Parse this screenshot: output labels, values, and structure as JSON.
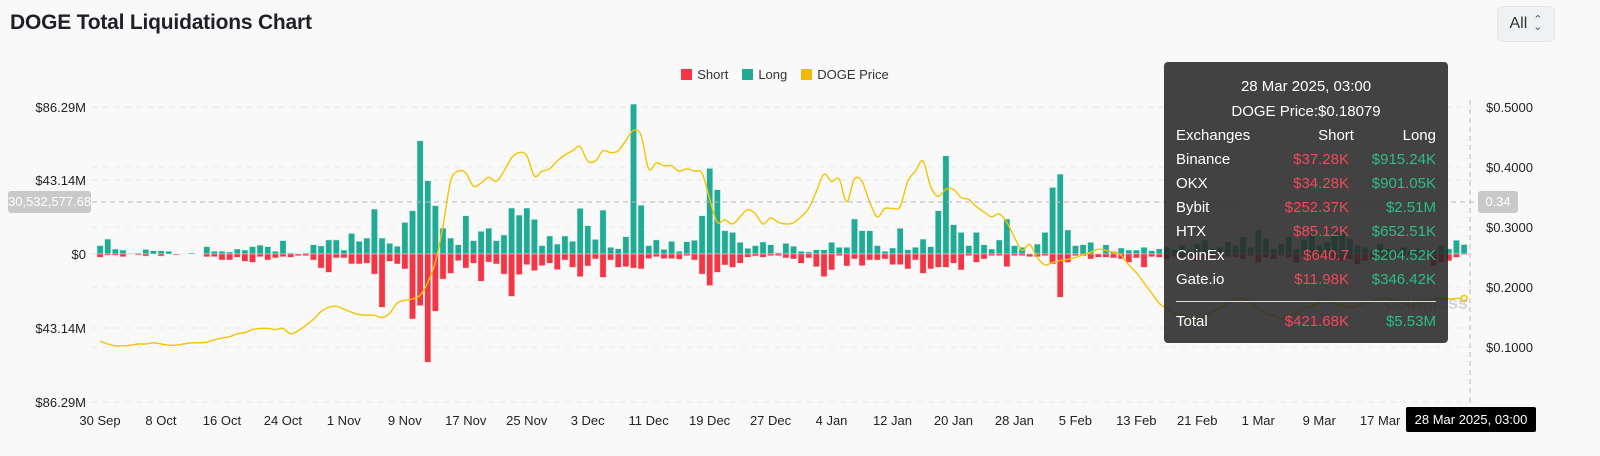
{
  "header": {
    "title": "DOGE Total Liquidations Chart",
    "range_value": "All"
  },
  "colors": {
    "short": "#f23645",
    "long": "#22ab94",
    "price": "#f5c400"
  },
  "crosshair": {
    "left_value": "30,532,577.68",
    "right_value": "0.34",
    "date": "28 Mar 2025, 03:00"
  },
  "watermark": "coinglass",
  "tooltip": {
    "date": "28 Mar 2025, 03:00",
    "price": "DOGE Price:$0.18079",
    "headers": [
      "Exchanges",
      "Short",
      "Long"
    ],
    "rows": [
      {
        "exchange": "Binance",
        "short": "$37.28K",
        "long": "$915.24K"
      },
      {
        "exchange": "OKX",
        "short": "$34.28K",
        "long": "$901.05K"
      },
      {
        "exchange": "Bybit",
        "short": "$252.37K",
        "long": "$2.51M"
      },
      {
        "exchange": "HTX",
        "short": "$85.12K",
        "long": "$652.51K"
      },
      {
        "exchange": "CoinEx",
        "short": "$640.7",
        "long": "$204.52K"
      },
      {
        "exchange": "Gate.io",
        "short": "$11.98K",
        "long": "$346.42K"
      }
    ],
    "total": {
      "label": "Total",
      "short": "$421.68K",
      "long": "$5.53M"
    }
  },
  "chart_data": {
    "type": "bar",
    "title": "DOGE Total Liquidations Chart",
    "legend": [
      "Short",
      "Long",
      "DOGE Price"
    ],
    "legend_position": "top-center",
    "x_unit": "day index from 30 Sep 2024 (daily bars)",
    "x_tick_labels": [
      "30 Sep",
      "8 Oct",
      "16 Oct",
      "24 Oct",
      "1 Nov",
      "9 Nov",
      "17 Nov",
      "25 Nov",
      "3 Dec",
      "11 Dec",
      "19 Dec",
      "27 Dec",
      "4 Jan",
      "12 Jan",
      "20 Jan",
      "28 Jan",
      "5 Feb",
      "13 Feb",
      "21 Feb",
      "1 Mar",
      "9 Mar",
      "17 Mar"
    ],
    "x_tick_step_days": 8,
    "y_left_labels": [
      "$86.29M",
      "$43.14M",
      "$0",
      "$43.14M",
      "$86.29M"
    ],
    "y_left_range_musd": [
      -86.29,
      86.29
    ],
    "y_right_labels": [
      "$0.5000",
      "$0.4000",
      "$0.3000",
      "$0.2000",
      "$0.1000"
    ],
    "y_right_range": [
      0.0,
      0.5
    ],
    "grid": true,
    "series": [
      {
        "name": "Long",
        "unit": "M USD",
        "values": [
          4.9,
          8.7,
          2.9,
          2.3,
          0.4,
          0.6,
          2.7,
          1.9,
          1.9,
          1.6,
          0,
          0,
          0.6,
          0,
          4.3,
          1.6,
          1.6,
          1.2,
          2.9,
          2.3,
          4.3,
          5.2,
          4.3,
          1.6,
          7.8,
          0.6,
          0,
          0.6,
          5.4,
          4.7,
          8.2,
          8.2,
          2.3,
          12,
          7.4,
          9.3,
          26.2,
          9.3,
          6.2,
          4.5,
          18.4,
          25.2,
          66,
          42.7,
          28.2,
          15.1,
          9.3,
          5.4,
          22.3,
          7.8,
          13.2,
          15,
          7.8,
          11.1,
          26.8,
          22.7,
          26.8,
          20.2,
          4.9,
          10.5,
          5.8,
          10.5,
          7.4,
          26.6,
          16.5,
          8.5,
          25.6,
          3.9,
          3.1,
          10.1,
          87.4,
          28.5,
          4.9,
          8.2,
          2.7,
          7.4,
          1.6,
          7.2,
          8,
          22.3,
          49.9,
          37.5,
          13.6,
          12.6,
          6.8,
          3.3,
          4.9,
          7,
          5.4,
          0.8,
          6.2,
          4.5,
          1.6,
          1.2,
          2.5,
          2.5,
          6.8,
          3.9,
          3.9,
          20.4,
          13.6,
          13.6,
          4.9,
          1.6,
          3.5,
          15,
          2.5,
          3.9,
          8.7,
          4.3,
          25.2,
          57.3,
          17.1,
          12.6,
          4.9,
          12.6,
          5.4,
          2.9,
          8.2,
          20.4,
          4.9,
          3.9,
          0,
          5.8,
          12.6,
          38.8,
          46.6,
          14,
          4.9,
          5.4,
          6.8,
          0,
          5.4,
          1.6,
          3.5,
          2.3,
          2.3,
          3.9,
          1.9,
          3,
          4,
          2.5,
          5,
          2,
          6,
          8,
          3,
          4,
          7,
          5,
          10,
          4,
          14,
          9,
          3,
          6,
          10,
          3,
          8,
          12,
          5,
          7,
          13,
          13,
          9,
          5,
          4,
          2,
          6,
          3,
          2,
          4,
          2,
          3,
          1.5,
          2,
          5,
          3,
          8,
          5.53
        ]
      },
      {
        "name": "Short",
        "unit": "M USD",
        "values": [
          1.9,
          0.8,
          0.8,
          1.6,
          0,
          0.6,
          1.2,
          0,
          1.2,
          0,
          0.6,
          0,
          0,
          0,
          1.6,
          1.6,
          3.5,
          3.5,
          1.9,
          4.3,
          4.9,
          1.6,
          3.5,
          2.3,
          1.6,
          1.9,
          1,
          1,
          3.5,
          8.2,
          10.7,
          2.3,
          2.3,
          5.8,
          5.8,
          5.4,
          11.7,
          31.1,
          4.3,
          5.8,
          8.7,
          37.9,
          30.1,
          63.1,
          33.4,
          14.6,
          11.3,
          3.9,
          8.2,
          5.4,
          15.9,
          4.7,
          5.8,
          11.7,
          24.7,
          12,
          6.2,
          9.7,
          6.8,
          5.4,
          9.1,
          3.5,
          7.8,
          13.2,
          7,
          2.9,
          13.6,
          3.5,
          7.8,
          7.4,
          8.2,
          8.7,
          2.7,
          1.6,
          2.7,
          2.7,
          3.1,
          1,
          3.5,
          11.7,
          18.4,
          10.7,
          6.4,
          7.8,
          5.4,
          1.9,
          1.2,
          1.9,
          1,
          1,
          2.3,
          2.9,
          5.4,
          2.3,
          7.4,
          13.2,
          9.3,
          1,
          7,
          2.9,
          6.8,
          3.5,
          3.5,
          2.9,
          6.2,
          6.2,
          8.7,
          3.5,
          11.3,
          8.7,
          7.8,
          7.8,
          5.4,
          9.3,
          1,
          4.9,
          2.9,
          1,
          1,
          7.4,
          1,
          1,
          1.6,
          1.6,
          1,
          5.8,
          25.2,
          4.9,
          1,
          1,
          2.9,
          1.9,
          1.9,
          2.3,
          2.9,
          4.9,
          2.3,
          7.8,
          1.6,
          2,
          3,
          1.5,
          2,
          1,
          4,
          3,
          2,
          3,
          1.5,
          2,
          3,
          1,
          5,
          2,
          3,
          1,
          2,
          5,
          1,
          3,
          2,
          2,
          3,
          4,
          3,
          6,
          4,
          2,
          1,
          2,
          1.5,
          2,
          1,
          1,
          0.5,
          7,
          5,
          4,
          2,
          0.42
        ]
      },
      {
        "name": "DOGE Price",
        "unit": "USD",
        "values": [
          0.11,
          0.105,
          0.102,
          0.102,
          0.103,
          0.105,
          0.105,
          0.107,
          0.105,
          0.103,
          0.103,
          0.105,
          0.107,
          0.107,
          0.108,
          0.112,
          0.115,
          0.117,
          0.122,
          0.124,
          0.129,
          0.131,
          0.131,
          0.129,
          0.131,
          0.122,
          0.127,
          0.136,
          0.146,
          0.159,
          0.166,
          0.168,
          0.163,
          0.158,
          0.154,
          0.153,
          0.153,
          0.149,
          0.156,
          0.173,
          0.178,
          0.18,
          0.186,
          0.207,
          0.241,
          0.3,
          0.376,
          0.393,
          0.39,
          0.368,
          0.373,
          0.383,
          0.376,
          0.393,
          0.415,
          0.424,
          0.419,
          0.385,
          0.393,
          0.397,
          0.41,
          0.42,
          0.427,
          0.434,
          0.41,
          0.41,
          0.427,
          0.424,
          0.427,
          0.444,
          0.461,
          0.453,
          0.397,
          0.407,
          0.402,
          0.402,
          0.393,
          0.397,
          0.393,
          0.39,
          0.347,
          0.308,
          0.312,
          0.305,
          0.317,
          0.329,
          0.322,
          0.305,
          0.315,
          0.308,
          0.305,
          0.307,
          0.317,
          0.331,
          0.359,
          0.388,
          0.376,
          0.38,
          0.342,
          0.38,
          0.376,
          0.342,
          0.317,
          0.331,
          0.331,
          0.334,
          0.376,
          0.393,
          0.41,
          0.368,
          0.351,
          0.363,
          0.363,
          0.349,
          0.346,
          0.334,
          0.325,
          0.317,
          0.322,
          0.308,
          0.283,
          0.261,
          0.271,
          0.249,
          0.237,
          0.241,
          0.244,
          0.246,
          0.249,
          0.254,
          0.258,
          0.263,
          0.261,
          0.258,
          0.253,
          0.237,
          0.224,
          0.207,
          0.19,
          0.173,
          0.164,
          0.156,
          0.153,
          0.147,
          0.142,
          0.153,
          0.159,
          0.164,
          0.173,
          0.18,
          0.181,
          0.173,
          0.164,
          0.156,
          0.153,
          0.147,
          0.153,
          0.156,
          0.164,
          0.168,
          0.173,
          0.176,
          0.173,
          0.169,
          0.166,
          0.168,
          0.173,
          0.176,
          0.18,
          0.181,
          0.178,
          0.173,
          0.169,
          0.173,
          0.176,
          0.18,
          0.181,
          0.18,
          0.181,
          0.18079
        ]
      }
    ]
  }
}
